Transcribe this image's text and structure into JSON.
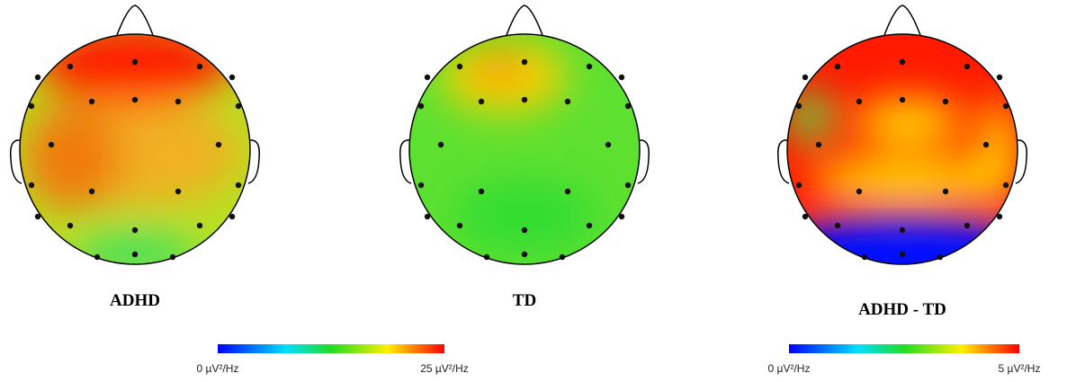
{
  "maps": [
    {
      "label": "ADHD"
    },
    {
      "label": "TD"
    },
    {
      "label": "ADHD - TD"
    }
  ],
  "colorbars": [
    {
      "min_label": "0 µV²/Hz",
      "max_label": "25 µV²/Hz"
    },
    {
      "min_label": "0 µV²/Hz",
      "max_label": "5 µV²/Hz"
    }
  ]
}
